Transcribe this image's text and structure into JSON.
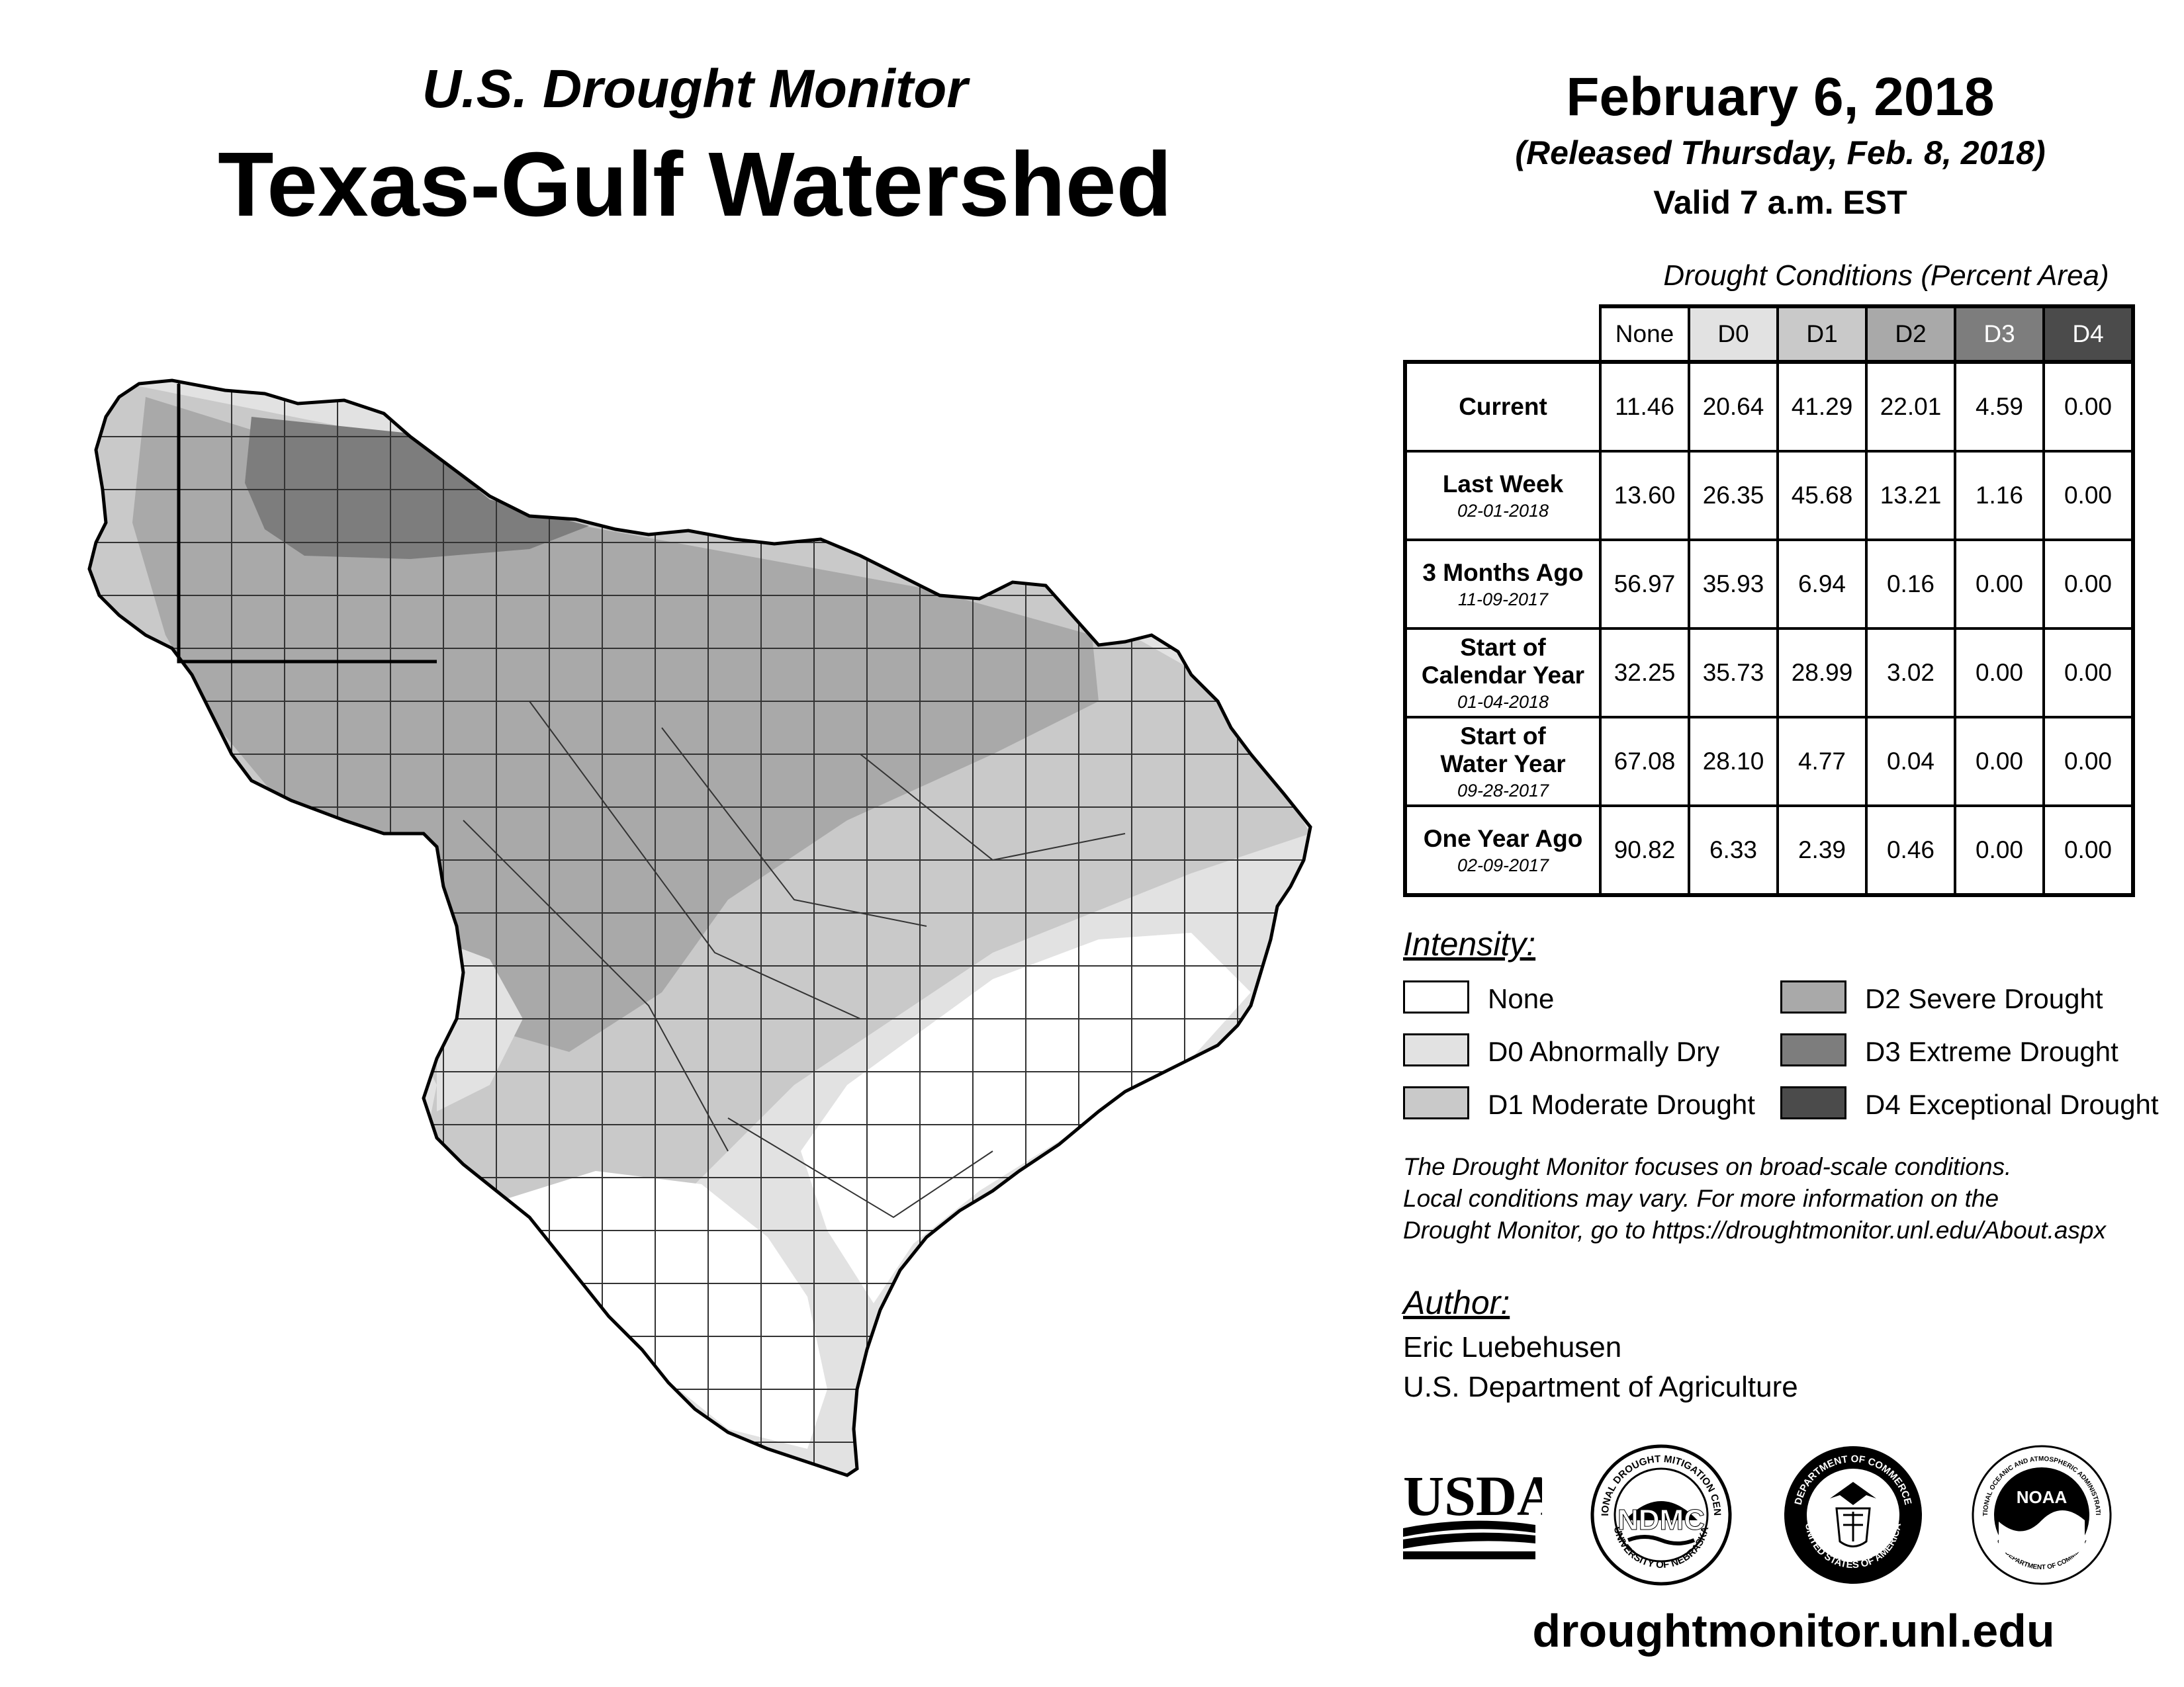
{
  "header": {
    "subtitle": "U.S. Drought Monitor",
    "title": "Texas-Gulf Watershed",
    "date": "February 6, 2018",
    "released": "(Released Thursday, Feb. 8, 2018)",
    "valid": "Valid 7 a.m. EST"
  },
  "table": {
    "caption": "Drought Conditions (Percent Area)",
    "columns": [
      "None",
      "D0",
      "D1",
      "D2",
      "D3",
      "D4"
    ],
    "rows": [
      {
        "label": "Current",
        "date": "",
        "values": [
          "11.46",
          "20.64",
          "41.29",
          "22.01",
          "4.59",
          "0.00"
        ]
      },
      {
        "label": "Last Week",
        "date": "02-01-2018",
        "values": [
          "13.60",
          "26.35",
          "45.68",
          "13.21",
          "1.16",
          "0.00"
        ]
      },
      {
        "label": "3 Months Ago",
        "date": "11-09-2017",
        "values": [
          "56.97",
          "35.93",
          "6.94",
          "0.16",
          "0.00",
          "0.00"
        ]
      },
      {
        "label": "Start of Calendar Year",
        "date": "01-04-2018",
        "values": [
          "32.25",
          "35.73",
          "28.99",
          "3.02",
          "0.00",
          "0.00"
        ]
      },
      {
        "label": "Start of Water Year",
        "date": "09-28-2017",
        "values": [
          "67.08",
          "28.10",
          "4.77",
          "0.04",
          "0.00",
          "0.00"
        ]
      },
      {
        "label": "One Year Ago",
        "date": "02-09-2017",
        "values": [
          "90.82",
          "6.33",
          "2.39",
          "0.46",
          "0.00",
          "0.00"
        ]
      }
    ]
  },
  "legend": {
    "heading": "Intensity:",
    "items": [
      {
        "label": "None",
        "color": "#ffffff"
      },
      {
        "label": "D0 Abnormally Dry",
        "color": "#e2e2e2"
      },
      {
        "label": "D1 Moderate Drought",
        "color": "#c9c9c9"
      },
      {
        "label": "D2 Severe Drought",
        "color": "#a9a9a9"
      },
      {
        "label": "D3 Extreme Drought",
        "color": "#7d7d7d"
      },
      {
        "label": "D4 Exceptional Drought",
        "color": "#4b4b4b"
      }
    ]
  },
  "note": {
    "line1": "The Drought Monitor focuses on broad-scale conditions.",
    "line2": "Local conditions may vary. For more information on the",
    "line3": "Drought Monitor, go to https://droughtmonitor.unl.edu/About.aspx"
  },
  "author": {
    "heading": "Author:",
    "name": "Eric Luebehusen",
    "organization": "U.S. Department of Agriculture"
  },
  "logos": {
    "usda": "USDA",
    "ndmc": "NDMC",
    "ndmc_top_text": "NATIONAL DROUGHT MITIGATION CENTER",
    "ndmc_bottom_text": "UNIVERSITY OF NEBRASKA",
    "commerce_top_text": "DEPARTMENT OF COMMERCE",
    "commerce_bottom_text": "UNITED STATES OF AMERICA",
    "noaa": "NOAA",
    "noaa_top_text": "NATIONAL OCEANIC AND ATMOSPHERIC ADMINISTRATION",
    "noaa_bottom_text": "U.S. DEPARTMENT OF COMMERCE"
  },
  "website": "droughtmonitor.unl.edu"
}
